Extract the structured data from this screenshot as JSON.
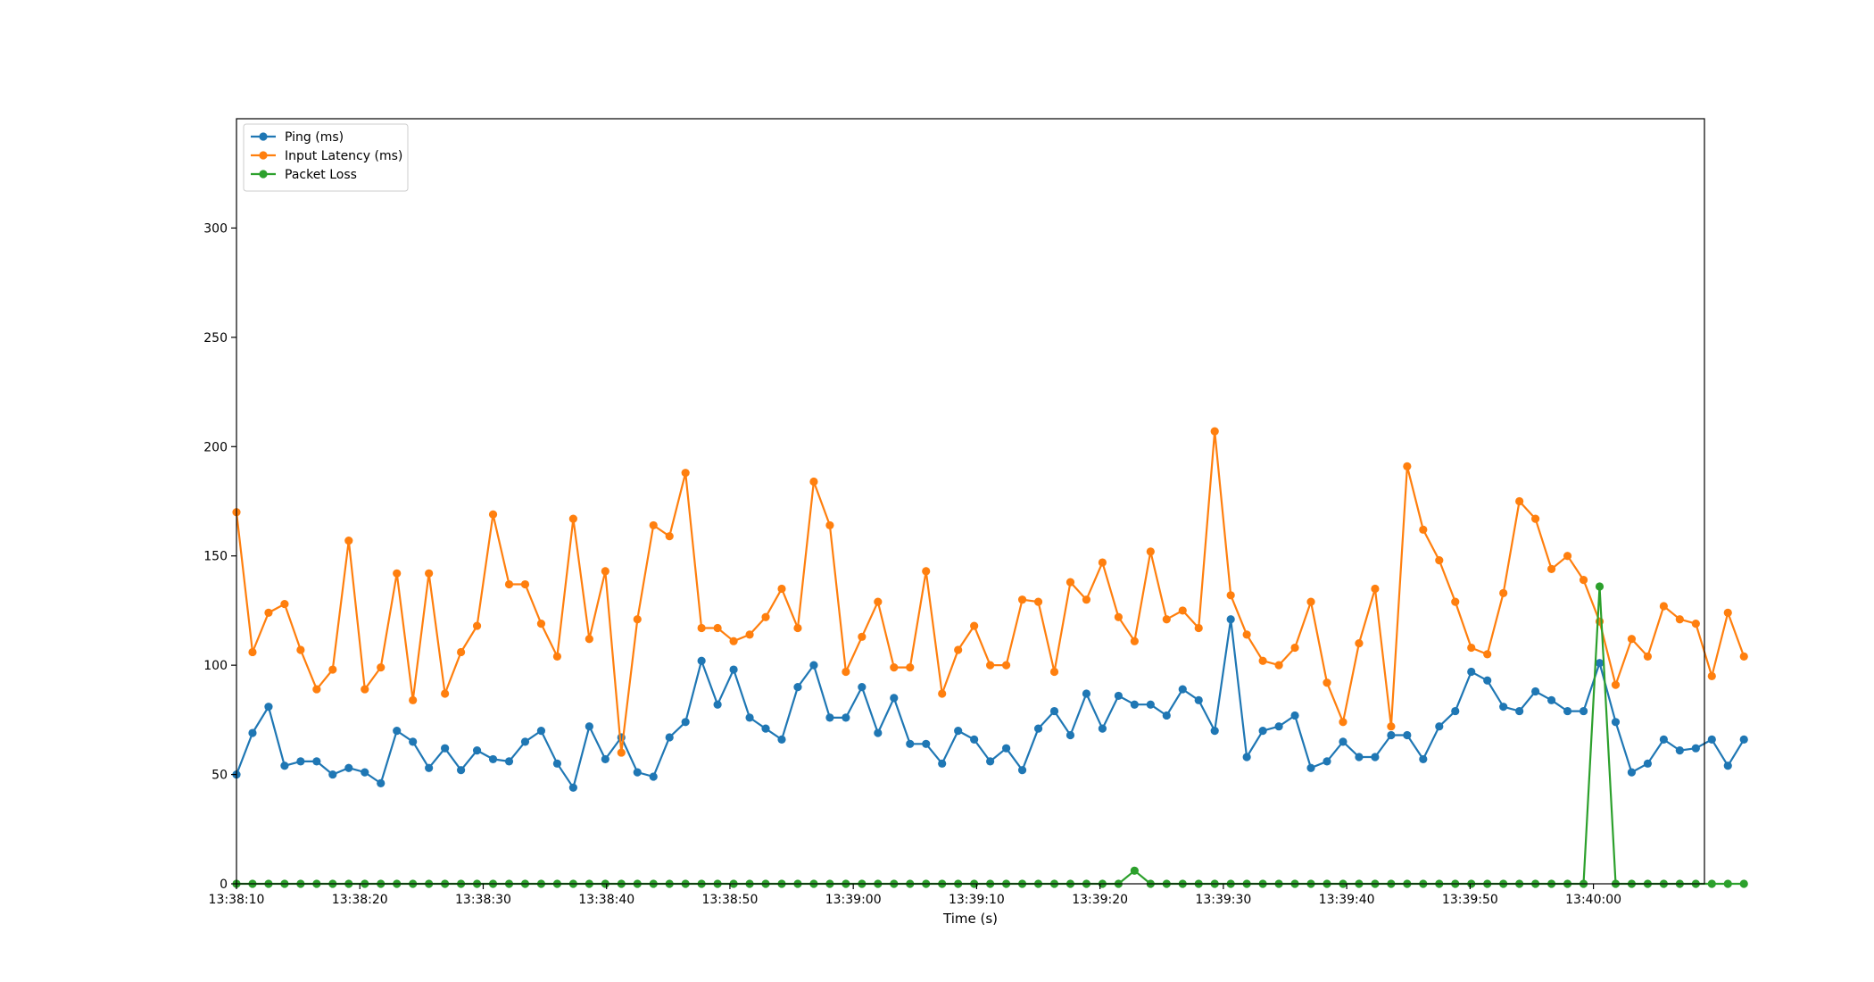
{
  "chart_data": {
    "type": "line",
    "xlabel": "Time (s)",
    "ylabel": "",
    "x_start": "13:38:10",
    "x_step_seconds": 1.3,
    "x_ticks": [
      "13:38:10",
      "13:38:20",
      "13:38:30",
      "13:38:40",
      "13:38:50",
      "13:39:00",
      "13:39:10",
      "13:39:20",
      "13:39:30",
      "13:39:40",
      "13:39:50",
      "13:40:00"
    ],
    "xlim_seconds": [
      0,
      119
    ],
    "ylim": [
      0,
      350
    ],
    "y_ticks": [
      0,
      50,
      100,
      150,
      200,
      250,
      300
    ],
    "legend_position": "top-left",
    "grid": false,
    "series": [
      {
        "name": "Ping (ms)",
        "color": "#1f77b4",
        "values": [
          50,
          69,
          81,
          54,
          56,
          56,
          50,
          53,
          51,
          46,
          70,
          65,
          53,
          62,
          52,
          61,
          57,
          56,
          65,
          70,
          55,
          44,
          72,
          57,
          67,
          51,
          49,
          67,
          74,
          102,
          82,
          98,
          76,
          71,
          66,
          90,
          100,
          76,
          76,
          90,
          69,
          85,
          64,
          64,
          55,
          70,
          66,
          56,
          62,
          52,
          71,
          79,
          68,
          87,
          71,
          86,
          82,
          82,
          77,
          89,
          84,
          70,
          121,
          58,
          70,
          72,
          77,
          53,
          56,
          65,
          58,
          58,
          68,
          68,
          57,
          72,
          79,
          97,
          93,
          81,
          79,
          88,
          84,
          79,
          79,
          101,
          74,
          51,
          55,
          66,
          61,
          62,
          66,
          54,
          66
        ]
      },
      {
        "name": "Input Latency (ms)",
        "color": "#ff7f0e",
        "values": [
          170,
          106,
          124,
          128,
          107,
          89,
          98,
          157,
          89,
          99,
          142,
          84,
          142,
          87,
          106,
          118,
          169,
          137,
          137,
          119,
          104,
          167,
          112,
          143,
          60,
          121,
          164,
          159,
          188,
          117,
          117,
          111,
          114,
          122,
          135,
          117,
          184,
          164,
          97,
          113,
          129,
          99,
          99,
          143,
          87,
          107,
          118,
          100,
          100,
          130,
          129,
          97,
          138,
          130,
          147,
          122,
          111,
          152,
          121,
          125,
          117,
          207,
          132,
          114,
          102,
          100,
          108,
          129,
          92,
          74,
          110,
          135,
          72,
          191,
          162,
          148,
          129,
          108,
          105,
          133,
          175,
          167,
          144,
          150,
          139,
          120,
          91,
          112,
          104,
          127,
          121,
          119,
          95,
          124,
          104
        ]
      },
      {
        "name": "Packet Loss",
        "color": "#2ca02c",
        "values": [
          0,
          0,
          0,
          0,
          0,
          0,
          0,
          0,
          0,
          0,
          0,
          0,
          0,
          0,
          0,
          0,
          0,
          0,
          0,
          0,
          0,
          0,
          0,
          0,
          0,
          0,
          0,
          0,
          0,
          0,
          0,
          0,
          0,
          0,
          0,
          0,
          0,
          0,
          0,
          0,
          0,
          0,
          0,
          0,
          0,
          0,
          0,
          0,
          0,
          0,
          0,
          0,
          0,
          0,
          0,
          0,
          6,
          0,
          0,
          0,
          0,
          0,
          0,
          0,
          0,
          0,
          0,
          0,
          0,
          0,
          0,
          0,
          0,
          0,
          0,
          0,
          0,
          0,
          0,
          0,
          0,
          0,
          0,
          0,
          0,
          136,
          0,
          0,
          0,
          0,
          0,
          0,
          0,
          0,
          0
        ]
      }
    ]
  }
}
